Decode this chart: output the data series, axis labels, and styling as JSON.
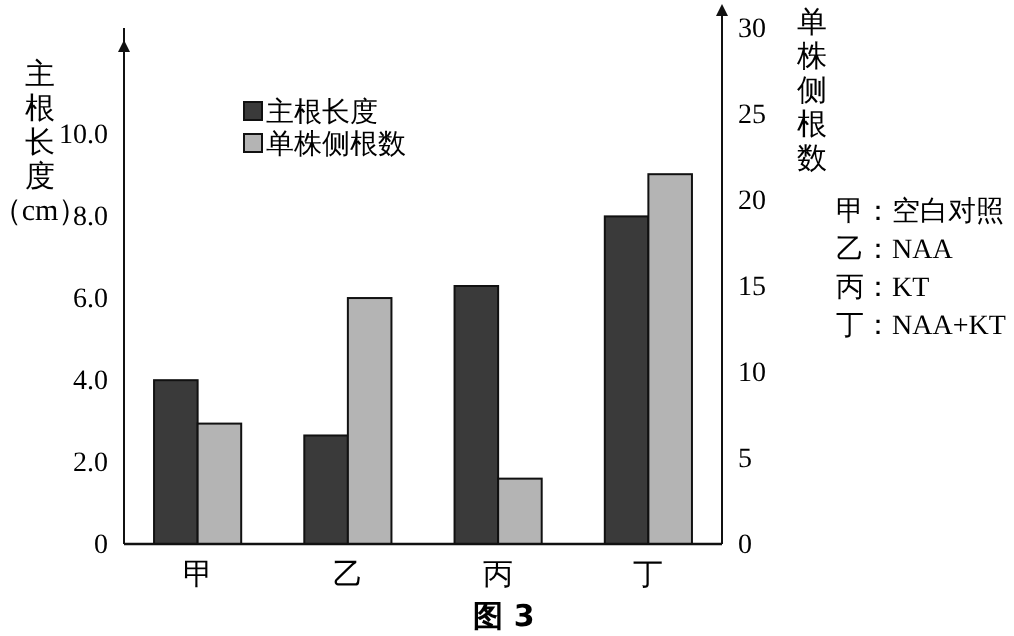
{
  "chart_data": {
    "type": "bar",
    "categories": [
      "甲",
      "乙",
      "丙",
      "丁"
    ],
    "series": [
      {
        "name": "主根长度",
        "color": "#3a3a3a",
        "values": [
          4.0,
          2.65,
          6.3,
          8.0
        ]
      },
      {
        "name": "单株侧根数",
        "color": "#b4b4b4",
        "values": [
          7,
          14.3,
          3.8,
          21.5
        ],
        "axis": "y2"
      }
    ],
    "ylabel": "主根长度（cm）",
    "y2label": "单株侧根数",
    "ylim": [
      0,
      12.6
    ],
    "yticks": [
      0,
      {
        "value": 2,
        "label": "2.0"
      },
      {
        "value": 4,
        "label": "4.0"
      },
      {
        "value": 6,
        "label": "6.0"
      },
      {
        "value": 8,
        "label": "8.0"
      },
      {
        "value": 10,
        "label": "10.0"
      }
    ],
    "y2lim": [
      0,
      30
    ],
    "y2ticks": [
      0,
      5,
      10,
      15,
      20,
      25,
      30
    ],
    "legend": "top left",
    "grid": false,
    "annotations": [
      "甲：空白对照",
      "乙：NAA",
      "丙：KT",
      "丁：NAA+KT",
      "图 3"
    ]
  }
}
